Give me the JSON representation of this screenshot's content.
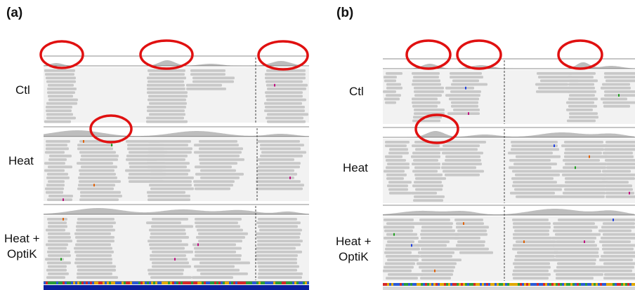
{
  "panels": [
    {
      "label": "(a)",
      "rows": [
        {
          "label_lines": [
            "Ctl"
          ]
        },
        {
          "label_lines": [
            "Heat"
          ]
        },
        {
          "label_lines": [
            "Heat +",
            "OptiK"
          ]
        }
      ]
    },
    {
      "label": "(b)",
      "rows": [
        {
          "label_lines": [
            "Ctl"
          ]
        },
        {
          "label_lines": [
            "Heat"
          ]
        },
        {
          "label_lines": [
            "Heat +",
            "OptiK"
          ]
        }
      ]
    }
  ],
  "colors": {
    "read": "#c8c8c8",
    "coverage": "#bdbdbd",
    "track_bg": "#f2f2f2",
    "separator": "#8c8c8c",
    "highlight_circle": "#e01010",
    "reference_bar": "#0b1f9e"
  }
}
